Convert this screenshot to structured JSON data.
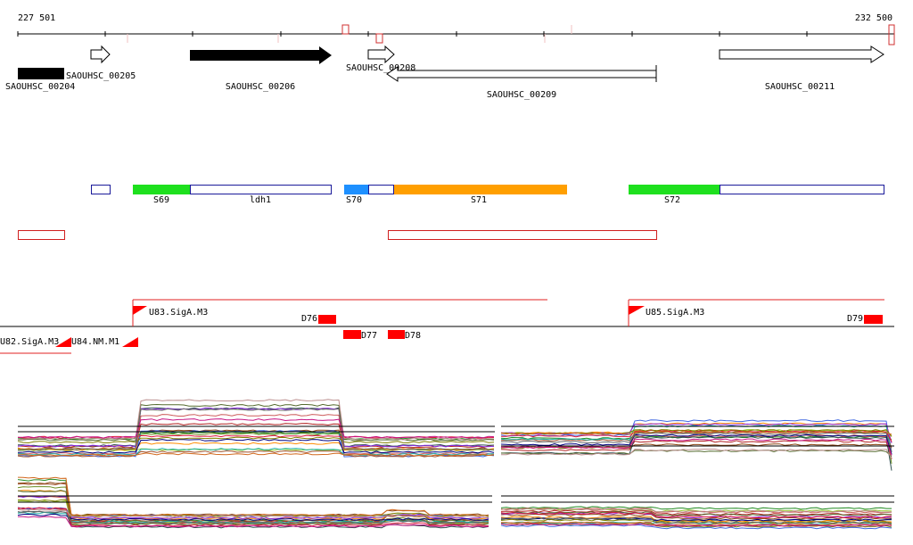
{
  "axis": {
    "start": "227 501",
    "end": "232 500"
  },
  "genes": [
    {
      "label": "SAOUHSC_00204"
    },
    {
      "label": "SAOUHSC_00205"
    },
    {
      "label": "SAOUHSC_00206"
    },
    {
      "label": "SAOUHSC_00208"
    },
    {
      "label": "SAOUHSC_00209"
    },
    {
      "label": "SAOUHSC_00211"
    }
  ],
  "segments": [
    {
      "label": "S69"
    },
    {
      "label": "ldh1"
    },
    {
      "label": "S70"
    },
    {
      "label": "S71"
    },
    {
      "label": "S72"
    }
  ],
  "features": [
    {
      "label": "U82.SigA.M3"
    },
    {
      "label": "U84.NM.M1"
    },
    {
      "label": "U83.SigA.M3"
    },
    {
      "label": "D76"
    },
    {
      "label": "D77"
    },
    {
      "label": "D78"
    },
    {
      "label": "U85.SigA.M3"
    },
    {
      "label": "D79"
    }
  ]
}
